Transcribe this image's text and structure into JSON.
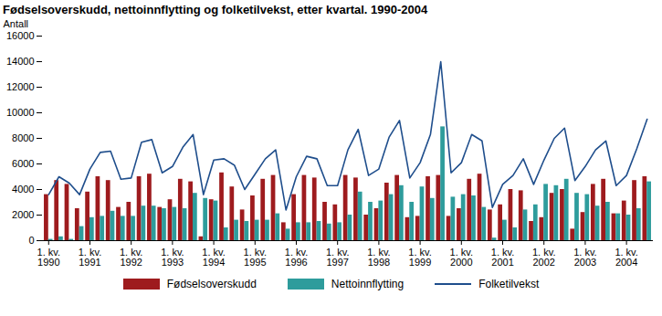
{
  "chart_data": {
    "type": "bar",
    "title": "Fødselsoverskudd, nettoinnflytting og folketilvekst, etter kvartal. 1990-2004",
    "y_label": "Antall",
    "categories": [
      "1. kv. 1990",
      null,
      null,
      null,
      "1. kv. 1991",
      null,
      null,
      null,
      "1. kv. 1992",
      null,
      null,
      null,
      "1. kv. 1993",
      null,
      null,
      null,
      "1. kv. 1994",
      null,
      null,
      null,
      "1. kv. 1995",
      null,
      null,
      null,
      "1. kv. 1996",
      null,
      null,
      null,
      "1. kv. 1997",
      null,
      null,
      null,
      "1. kv. 1998",
      null,
      null,
      null,
      "1. kv. 1999",
      null,
      null,
      null,
      "1. kv. 2000",
      null,
      null,
      null,
      "1. kv. 2001",
      null,
      null,
      null,
      "1. kv. 2002",
      null,
      null,
      null,
      "1. kv. 2003",
      null,
      null,
      null,
      "1. kv. 2004",
      null,
      null
    ],
    "series": [
      {
        "name": "Fødselsoverskudd",
        "type": "bar",
        "color": "#9e1b1e",
        "values": [
          3600,
          4700,
          4400,
          2500,
          3800,
          5000,
          4700,
          2600,
          3000,
          5000,
          5200,
          2600,
          3200,
          4800,
          4600,
          300,
          3200,
          5300,
          4200,
          2400,
          3500,
          4800,
          5100,
          1400,
          3600,
          5100,
          4900,
          3000,
          2800,
          5100,
          4900,
          2000,
          2500,
          4500,
          5100,
          1800,
          1900,
          5000,
          5100,
          1900,
          2500,
          4800,
          5200,
          2400,
          2800,
          4000,
          3900,
          1500,
          1800,
          3700,
          4000,
          900,
          2200,
          4400,
          4800,
          2100,
          3100,
          4700,
          5000
        ]
      },
      {
        "name": "Nettoinnflytting",
        "type": "bar",
        "color": "#2e9c9c",
        "values": [
          100,
          300,
          100,
          1100,
          1800,
          1900,
          2300,
          1900,
          1900,
          2700,
          2700,
          2500,
          2600,
          2500,
          3700,
          3300,
          3100,
          1000,
          1600,
          1500,
          1600,
          1600,
          2100,
          900,
          1400,
          1400,
          1500,
          1300,
          1400,
          2000,
          3800,
          3000,
          3100,
          3600,
          4300,
          3000,
          4200,
          3300,
          8900,
          3400,
          3600,
          3500,
          2600,
          200,
          1600,
          1000,
          2400,
          2800,
          4400,
          4300,
          4800,
          3700,
          3600,
          2700,
          3000,
          2100,
          2000,
          2500,
          4600
        ]
      },
      {
        "name": "Folketilvekst",
        "type": "line",
        "color": "#1f4e8c",
        "values": [
          3600,
          5000,
          4500,
          3600,
          5600,
          6900,
          7000,
          4800,
          4900,
          7700,
          7900,
          5300,
          5800,
          7300,
          8300,
          3600,
          6300,
          6400,
          5900,
          4000,
          5200,
          6400,
          7100,
          2400,
          5000,
          6600,
          6400,
          4300,
          4300,
          7100,
          8700,
          5100,
          5600,
          8100,
          9400,
          4900,
          6100,
          8300,
          14000,
          5300,
          6100,
          8300,
          7800,
          2600,
          4400,
          5100,
          6400,
          4400,
          6300,
          8000,
          8800,
          4700,
          5800,
          7100,
          7800,
          4300,
          5100,
          7200,
          9500
        ]
      }
    ],
    "ylim": [
      0,
      16000
    ],
    "yticks": [
      0,
      2000,
      4000,
      6000,
      8000,
      10000,
      12000,
      14000,
      16000
    ],
    "grid": false,
    "legend": "bottom"
  }
}
